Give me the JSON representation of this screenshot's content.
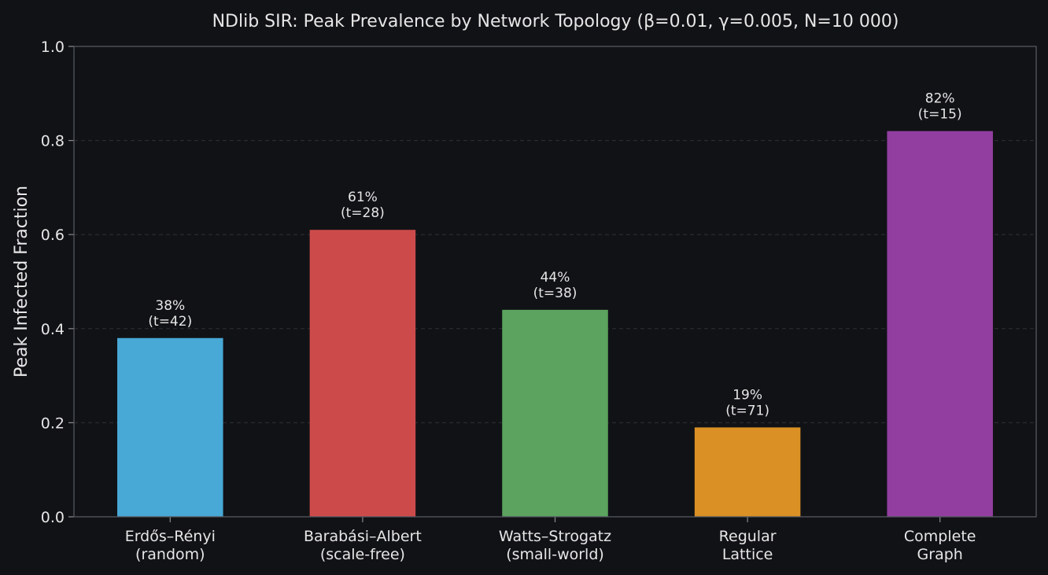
{
  "chart_data": {
    "type": "bar",
    "title": "NDlib SIR: Peak Prevalence by Network Topology (β=0.01, γ=0.005, N=10 000)",
    "xlabel": "",
    "ylabel": "Peak Infected Fraction",
    "ylim": [
      0,
      1.0
    ],
    "yticks": [
      "0.0",
      "0.2",
      "0.4",
      "0.6",
      "0.8",
      "1.0"
    ],
    "grid": "horizontal dashed",
    "categories": [
      [
        "Erdős–Rényi",
        "(random)"
      ],
      [
        "Barabási–Albert",
        "(scale-free)"
      ],
      [
        "Watts–Strogatz",
        "(small-world)"
      ],
      [
        "Regular",
        "Lattice"
      ],
      [
        "Complete",
        "Graph"
      ]
    ],
    "values": [
      0.38,
      0.61,
      0.44,
      0.19,
      0.82
    ],
    "bar_labels": [
      [
        "38%",
        "(t=42)"
      ],
      [
        "61%",
        "(t=28)"
      ],
      [
        "44%",
        "(t=38)"
      ],
      [
        "19%",
        "(t=71)"
      ],
      [
        "82%",
        "(t=15)"
      ]
    ],
    "colors": [
      "#48a8d6",
      "#cd4a4a",
      "#5ba35e",
      "#da9024",
      "#923ea0"
    ]
  }
}
